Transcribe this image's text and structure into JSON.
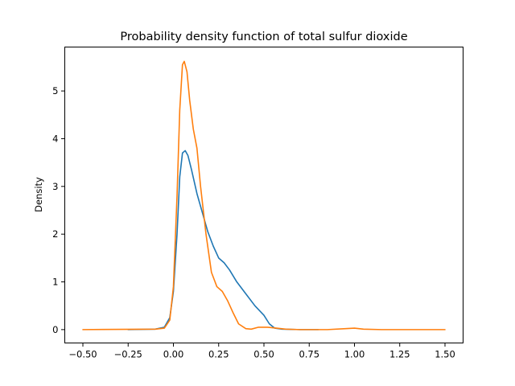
{
  "chart_data": {
    "type": "line",
    "title": "Probability density function of total sulfur dioxide",
    "xlabel": "",
    "ylabel": "Density",
    "xlim": [
      -0.6,
      1.6
    ],
    "ylim": [
      -0.28,
      5.92
    ],
    "xticks": [
      -0.5,
      -0.25,
      0.0,
      0.25,
      0.5,
      0.75,
      1.0,
      1.25,
      1.5
    ],
    "xtick_labels": [
      "−0.50",
      "−0.25",
      "0.00",
      "0.25",
      "0.50",
      "0.75",
      "1.00",
      "1.25",
      "1.50"
    ],
    "yticks": [
      0,
      1,
      2,
      3,
      4,
      5
    ],
    "ytick_labels": [
      "0",
      "1",
      "2",
      "3",
      "4",
      "5"
    ],
    "grid": false,
    "legend": "none",
    "series": [
      {
        "color": "#1f77b4",
        "x": [
          -0.25,
          -0.1,
          -0.05,
          -0.02,
          0.0,
          0.02,
          0.035,
          0.05,
          0.065,
          0.08,
          0.1,
          0.13,
          0.16,
          0.19,
          0.22,
          0.25,
          0.28,
          0.31,
          0.35,
          0.4,
          0.45,
          0.5,
          0.53,
          0.56,
          0.6,
          0.7,
          0.8
        ],
        "y": [
          0.0,
          0.01,
          0.05,
          0.25,
          0.8,
          2.0,
          3.2,
          3.7,
          3.75,
          3.65,
          3.35,
          2.85,
          2.45,
          2.05,
          1.75,
          1.5,
          1.4,
          1.25,
          1.0,
          0.75,
          0.5,
          0.3,
          0.12,
          0.03,
          0.01,
          0.0,
          0.0
        ]
      },
      {
        "color": "#ff7f0e",
        "x": [
          -0.5,
          -0.1,
          -0.05,
          -0.02,
          0.0,
          0.02,
          0.035,
          0.05,
          0.06,
          0.075,
          0.09,
          0.11,
          0.13,
          0.15,
          0.18,
          0.21,
          0.24,
          0.27,
          0.3,
          0.33,
          0.36,
          0.4,
          0.43,
          0.47,
          0.52,
          0.57,
          0.62,
          0.7,
          0.85,
          0.95,
          1.0,
          1.05,
          1.15,
          1.5
        ],
        "y": [
          0.0,
          0.01,
          0.03,
          0.2,
          0.9,
          2.8,
          4.6,
          5.55,
          5.62,
          5.4,
          4.8,
          4.2,
          3.8,
          3.0,
          2.0,
          1.2,
          0.9,
          0.8,
          0.6,
          0.35,
          0.12,
          0.02,
          0.01,
          0.05,
          0.05,
          0.03,
          0.01,
          0.0,
          0.0,
          0.02,
          0.03,
          0.01,
          0.0,
          0.0
        ]
      }
    ]
  }
}
